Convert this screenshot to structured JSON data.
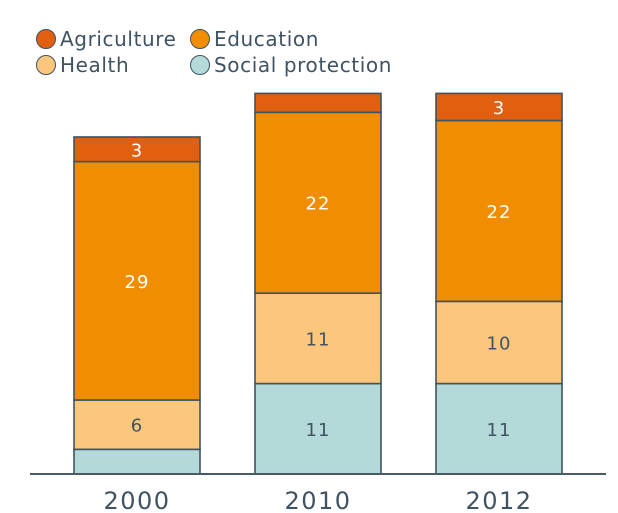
{
  "chart_data": {
    "type": "bar",
    "stacked": true,
    "categories": [
      "2000",
      "2010",
      "2012"
    ],
    "series": [
      {
        "name": "Social protection",
        "values": [
          3,
          11,
          11
        ],
        "labels": [
          "",
          "11",
          "11"
        ],
        "color": "#b3d9d8"
      },
      {
        "name": "Health",
        "values": [
          6,
          11,
          10
        ],
        "labels": [
          "6",
          "11",
          "10"
        ],
        "color": "#fcc77c"
      },
      {
        "name": "Education",
        "values": [
          29,
          22,
          22
        ],
        "labels": [
          "29",
          "22",
          "22"
        ],
        "color": "#f18d00"
      },
      {
        "name": "Agriculture",
        "values": [
          3,
          2.3,
          3.3
        ],
        "labels": [
          "3",
          "",
          "3"
        ],
        "color": "#e06010"
      }
    ],
    "legend": {
      "placement": "top-left",
      "entries": [
        "Agriculture",
        "Education",
        "Health",
        "Social protection"
      ]
    },
    "colors": {
      "axis": "#4a5a68",
      "outline": "#3f5362",
      "label_dark": "#3f5362",
      "label_light": "#ffffff"
    },
    "ylim": [
      0,
      45
    ],
    "grid": false
  }
}
